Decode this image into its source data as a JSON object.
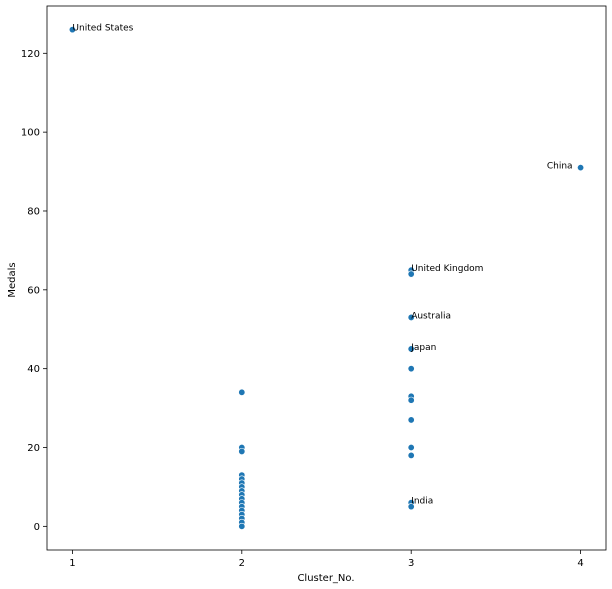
{
  "chart_data": {
    "type": "scatter",
    "title": "",
    "xlabel": "Cluster_No.",
    "ylabel": "Medals",
    "xlim": [
      0.85,
      4.15
    ],
    "ylim": [
      -6,
      132
    ],
    "xticks": [
      1,
      2,
      3,
      4
    ],
    "yticks": [
      0,
      20,
      40,
      60,
      80,
      100,
      120
    ],
    "grid": false,
    "color": "#1f77b4",
    "points": [
      {
        "x": 1,
        "y": 126
      },
      {
        "x": 4,
        "y": 91
      },
      {
        "x": 3,
        "y": 65
      },
      {
        "x": 3,
        "y": 64
      },
      {
        "x": 3,
        "y": 53
      },
      {
        "x": 3,
        "y": 45
      },
      {
        "x": 3,
        "y": 40
      },
      {
        "x": 3,
        "y": 33
      },
      {
        "x": 3,
        "y": 32
      },
      {
        "x": 3,
        "y": 27
      },
      {
        "x": 3,
        "y": 20
      },
      {
        "x": 3,
        "y": 18
      },
      {
        "x": 3,
        "y": 6
      },
      {
        "x": 3,
        "y": 5
      },
      {
        "x": 2,
        "y": 34
      },
      {
        "x": 2,
        "y": 20
      },
      {
        "x": 2,
        "y": 19
      },
      {
        "x": 2,
        "y": 13
      },
      {
        "x": 2,
        "y": 12
      },
      {
        "x": 2,
        "y": 11
      },
      {
        "x": 2,
        "y": 10
      },
      {
        "x": 2,
        "y": 9
      },
      {
        "x": 2,
        "y": 8
      },
      {
        "x": 2,
        "y": 7
      },
      {
        "x": 2,
        "y": 6
      },
      {
        "x": 2,
        "y": 5
      },
      {
        "x": 2,
        "y": 4
      },
      {
        "x": 2,
        "y": 3
      },
      {
        "x": 2,
        "y": 2
      },
      {
        "x": 2,
        "y": 1
      },
      {
        "x": 2,
        "y": 0
      }
    ],
    "annotations": [
      {
        "text": "United States",
        "x": 1,
        "y": 126,
        "align": "left"
      },
      {
        "text": "China",
        "x": 4,
        "y": 91,
        "align": "right"
      },
      {
        "text": "United Kingdom",
        "x": 3,
        "y": 65,
        "align": "left"
      },
      {
        "text": "Australia",
        "x": 3,
        "y": 53,
        "align": "left"
      },
      {
        "text": "Japan",
        "x": 3,
        "y": 45,
        "align": "left"
      },
      {
        "text": "India",
        "x": 3,
        "y": 6,
        "align": "left"
      }
    ]
  }
}
